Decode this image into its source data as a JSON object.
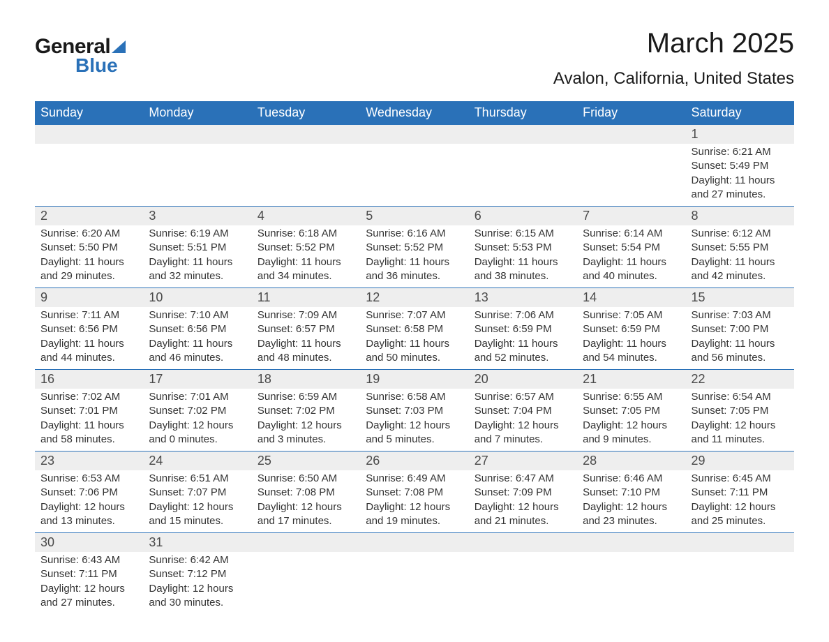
{
  "logo": {
    "general": "General",
    "blue": "Blue"
  },
  "title": "March 2025",
  "location": "Avalon, California, United States",
  "colors": {
    "header_bg": "#2a71b8",
    "header_text": "#ffffff",
    "daynum_bg": "#eeeeee",
    "daynum_text": "#4a4a4a",
    "body_text": "#333333",
    "border": "#2a71b8"
  },
  "days_of_week": [
    "Sunday",
    "Monday",
    "Tuesday",
    "Wednesday",
    "Thursday",
    "Friday",
    "Saturday"
  ],
  "weeks": [
    [
      null,
      null,
      null,
      null,
      null,
      null,
      {
        "n": "1",
        "sr": "Sunrise: 6:21 AM",
        "ss": "Sunset: 5:49 PM",
        "d1": "Daylight: 11 hours",
        "d2": "and 27 minutes."
      }
    ],
    [
      {
        "n": "2",
        "sr": "Sunrise: 6:20 AM",
        "ss": "Sunset: 5:50 PM",
        "d1": "Daylight: 11 hours",
        "d2": "and 29 minutes."
      },
      {
        "n": "3",
        "sr": "Sunrise: 6:19 AM",
        "ss": "Sunset: 5:51 PM",
        "d1": "Daylight: 11 hours",
        "d2": "and 32 minutes."
      },
      {
        "n": "4",
        "sr": "Sunrise: 6:18 AM",
        "ss": "Sunset: 5:52 PM",
        "d1": "Daylight: 11 hours",
        "d2": "and 34 minutes."
      },
      {
        "n": "5",
        "sr": "Sunrise: 6:16 AM",
        "ss": "Sunset: 5:52 PM",
        "d1": "Daylight: 11 hours",
        "d2": "and 36 minutes."
      },
      {
        "n": "6",
        "sr": "Sunrise: 6:15 AM",
        "ss": "Sunset: 5:53 PM",
        "d1": "Daylight: 11 hours",
        "d2": "and 38 minutes."
      },
      {
        "n": "7",
        "sr": "Sunrise: 6:14 AM",
        "ss": "Sunset: 5:54 PM",
        "d1": "Daylight: 11 hours",
        "d2": "and 40 minutes."
      },
      {
        "n": "8",
        "sr": "Sunrise: 6:12 AM",
        "ss": "Sunset: 5:55 PM",
        "d1": "Daylight: 11 hours",
        "d2": "and 42 minutes."
      }
    ],
    [
      {
        "n": "9",
        "sr": "Sunrise: 7:11 AM",
        "ss": "Sunset: 6:56 PM",
        "d1": "Daylight: 11 hours",
        "d2": "and 44 minutes."
      },
      {
        "n": "10",
        "sr": "Sunrise: 7:10 AM",
        "ss": "Sunset: 6:56 PM",
        "d1": "Daylight: 11 hours",
        "d2": "and 46 minutes."
      },
      {
        "n": "11",
        "sr": "Sunrise: 7:09 AM",
        "ss": "Sunset: 6:57 PM",
        "d1": "Daylight: 11 hours",
        "d2": "and 48 minutes."
      },
      {
        "n": "12",
        "sr": "Sunrise: 7:07 AM",
        "ss": "Sunset: 6:58 PM",
        "d1": "Daylight: 11 hours",
        "d2": "and 50 minutes."
      },
      {
        "n": "13",
        "sr": "Sunrise: 7:06 AM",
        "ss": "Sunset: 6:59 PM",
        "d1": "Daylight: 11 hours",
        "d2": "and 52 minutes."
      },
      {
        "n": "14",
        "sr": "Sunrise: 7:05 AM",
        "ss": "Sunset: 6:59 PM",
        "d1": "Daylight: 11 hours",
        "d2": "and 54 minutes."
      },
      {
        "n": "15",
        "sr": "Sunrise: 7:03 AM",
        "ss": "Sunset: 7:00 PM",
        "d1": "Daylight: 11 hours",
        "d2": "and 56 minutes."
      }
    ],
    [
      {
        "n": "16",
        "sr": "Sunrise: 7:02 AM",
        "ss": "Sunset: 7:01 PM",
        "d1": "Daylight: 11 hours",
        "d2": "and 58 minutes."
      },
      {
        "n": "17",
        "sr": "Sunrise: 7:01 AM",
        "ss": "Sunset: 7:02 PM",
        "d1": "Daylight: 12 hours",
        "d2": "and 0 minutes."
      },
      {
        "n": "18",
        "sr": "Sunrise: 6:59 AM",
        "ss": "Sunset: 7:02 PM",
        "d1": "Daylight: 12 hours",
        "d2": "and 3 minutes."
      },
      {
        "n": "19",
        "sr": "Sunrise: 6:58 AM",
        "ss": "Sunset: 7:03 PM",
        "d1": "Daylight: 12 hours",
        "d2": "and 5 minutes."
      },
      {
        "n": "20",
        "sr": "Sunrise: 6:57 AM",
        "ss": "Sunset: 7:04 PM",
        "d1": "Daylight: 12 hours",
        "d2": "and 7 minutes."
      },
      {
        "n": "21",
        "sr": "Sunrise: 6:55 AM",
        "ss": "Sunset: 7:05 PM",
        "d1": "Daylight: 12 hours",
        "d2": "and 9 minutes."
      },
      {
        "n": "22",
        "sr": "Sunrise: 6:54 AM",
        "ss": "Sunset: 7:05 PM",
        "d1": "Daylight: 12 hours",
        "d2": "and 11 minutes."
      }
    ],
    [
      {
        "n": "23",
        "sr": "Sunrise: 6:53 AM",
        "ss": "Sunset: 7:06 PM",
        "d1": "Daylight: 12 hours",
        "d2": "and 13 minutes."
      },
      {
        "n": "24",
        "sr": "Sunrise: 6:51 AM",
        "ss": "Sunset: 7:07 PM",
        "d1": "Daylight: 12 hours",
        "d2": "and 15 minutes."
      },
      {
        "n": "25",
        "sr": "Sunrise: 6:50 AM",
        "ss": "Sunset: 7:08 PM",
        "d1": "Daylight: 12 hours",
        "d2": "and 17 minutes."
      },
      {
        "n": "26",
        "sr": "Sunrise: 6:49 AM",
        "ss": "Sunset: 7:08 PM",
        "d1": "Daylight: 12 hours",
        "d2": "and 19 minutes."
      },
      {
        "n": "27",
        "sr": "Sunrise: 6:47 AM",
        "ss": "Sunset: 7:09 PM",
        "d1": "Daylight: 12 hours",
        "d2": "and 21 minutes."
      },
      {
        "n": "28",
        "sr": "Sunrise: 6:46 AM",
        "ss": "Sunset: 7:10 PM",
        "d1": "Daylight: 12 hours",
        "d2": "and 23 minutes."
      },
      {
        "n": "29",
        "sr": "Sunrise: 6:45 AM",
        "ss": "Sunset: 7:11 PM",
        "d1": "Daylight: 12 hours",
        "d2": "and 25 minutes."
      }
    ],
    [
      {
        "n": "30",
        "sr": "Sunrise: 6:43 AM",
        "ss": "Sunset: 7:11 PM",
        "d1": "Daylight: 12 hours",
        "d2": "and 27 minutes."
      },
      {
        "n": "31",
        "sr": "Sunrise: 6:42 AM",
        "ss": "Sunset: 7:12 PM",
        "d1": "Daylight: 12 hours",
        "d2": "and 30 minutes."
      },
      null,
      null,
      null,
      null,
      null
    ]
  ]
}
